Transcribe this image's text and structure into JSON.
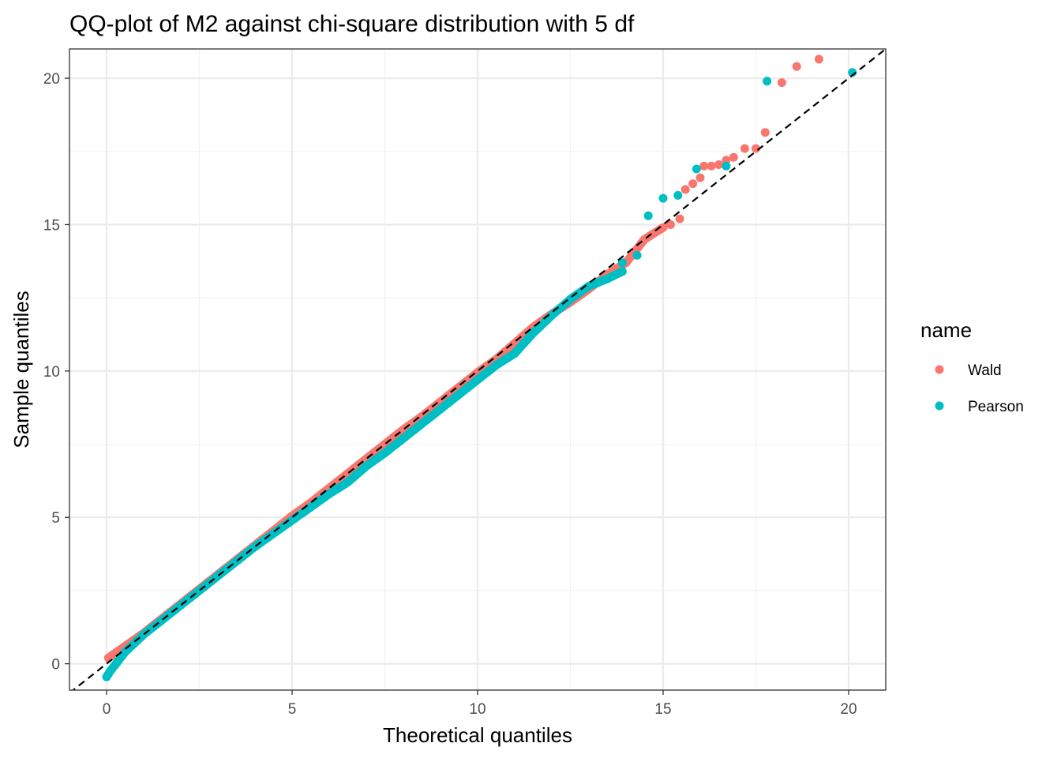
{
  "chart_data": {
    "type": "scatter",
    "title": "QQ-plot of M2 against chi-square distribution with 5 df",
    "xlabel": "Theoretical quantiles",
    "ylabel": "Sample quantiles",
    "xlim": [
      -1.0,
      21.0
    ],
    "ylim": [
      -0.9,
      21.0
    ],
    "x_ticks": [
      0,
      5,
      10,
      15,
      20
    ],
    "y_ticks": [
      0,
      5,
      10,
      15,
      20
    ],
    "x_tick_labels": [
      "0",
      "5",
      "10",
      "15",
      "20"
    ],
    "y_tick_labels": [
      "0",
      "5",
      "10",
      "15",
      "20"
    ],
    "grid": true,
    "reference_line": {
      "style": "dashed",
      "color": "#000000",
      "intercept": 0,
      "slope": 1
    },
    "legend": {
      "title": "name",
      "position": "right",
      "entries": [
        {
          "label": "Wald",
          "color": "#F8766D"
        },
        {
          "label": "Pearson",
          "color": "#00BFC4"
        }
      ]
    },
    "series": [
      {
        "name": "Wald",
        "color": "#F8766D",
        "dense_curve": [
          [
            0.05,
            0.2
          ],
          [
            0.5,
            0.6
          ],
          [
            1.0,
            1.05
          ],
          [
            1.5,
            1.55
          ],
          [
            2.0,
            2.05
          ],
          [
            2.5,
            2.55
          ],
          [
            3.0,
            3.05
          ],
          [
            3.5,
            3.55
          ],
          [
            4.0,
            4.05
          ],
          [
            4.5,
            4.55
          ],
          [
            5.0,
            5.05
          ],
          [
            5.5,
            5.5
          ],
          [
            6.0,
            6.0
          ],
          [
            6.5,
            6.5
          ],
          [
            7.0,
            7.0
          ],
          [
            7.5,
            7.5
          ],
          [
            8.0,
            8.0
          ],
          [
            8.5,
            8.45
          ],
          [
            9.0,
            8.95
          ],
          [
            9.5,
            9.45
          ],
          [
            10.0,
            9.95
          ],
          [
            10.5,
            10.4
          ],
          [
            11.0,
            10.95
          ],
          [
            11.5,
            11.5
          ],
          [
            12.0,
            11.95
          ],
          [
            12.5,
            12.35
          ],
          [
            13.0,
            12.8
          ],
          [
            13.5,
            13.3
          ],
          [
            14.0,
            13.7
          ],
          [
            14.5,
            14.5
          ],
          [
            15.0,
            14.9
          ]
        ],
        "points": [
          [
            15.2,
            15.0
          ],
          [
            15.45,
            15.2
          ],
          [
            15.6,
            16.2
          ],
          [
            15.8,
            16.4
          ],
          [
            16.0,
            16.6
          ],
          [
            16.1,
            17.0
          ],
          [
            16.3,
            17.0
          ],
          [
            16.5,
            17.05
          ],
          [
            16.7,
            17.2
          ],
          [
            16.9,
            17.3
          ],
          [
            17.2,
            17.6
          ],
          [
            17.5,
            17.6
          ],
          [
            17.75,
            18.15
          ],
          [
            18.2,
            19.85
          ],
          [
            18.6,
            20.4
          ],
          [
            19.2,
            20.65
          ]
        ]
      },
      {
        "name": "Pearson",
        "color": "#00BFC4",
        "dense_curve": [
          [
            0.0,
            -0.45
          ],
          [
            0.1,
            -0.25
          ],
          [
            0.5,
            0.4
          ],
          [
            1.0,
            1.0
          ],
          [
            1.5,
            1.5
          ],
          [
            2.0,
            2.0
          ],
          [
            2.5,
            2.5
          ],
          [
            3.0,
            3.0
          ],
          [
            3.5,
            3.5
          ],
          [
            4.0,
            4.0
          ],
          [
            4.5,
            4.45
          ],
          [
            5.0,
            4.9
          ],
          [
            5.5,
            5.35
          ],
          [
            6.0,
            5.8
          ],
          [
            6.5,
            6.2
          ],
          [
            7.0,
            6.75
          ],
          [
            7.5,
            7.2
          ],
          [
            8.0,
            7.7
          ],
          [
            8.5,
            8.2
          ],
          [
            9.0,
            8.7
          ],
          [
            9.5,
            9.2
          ],
          [
            10.0,
            9.7
          ],
          [
            10.5,
            10.2
          ],
          [
            11.0,
            10.6
          ],
          [
            11.5,
            11.3
          ],
          [
            12.0,
            11.9
          ],
          [
            12.5,
            12.45
          ],
          [
            13.0,
            12.9
          ],
          [
            13.5,
            13.15
          ],
          [
            13.9,
            13.4
          ]
        ],
        "points": [
          [
            13.9,
            13.7
          ],
          [
            14.3,
            13.95
          ],
          [
            14.6,
            15.3
          ],
          [
            15.0,
            15.9
          ],
          [
            15.4,
            16.0
          ],
          [
            15.9,
            16.9
          ],
          [
            16.7,
            17.0
          ],
          [
            17.8,
            19.9
          ],
          [
            20.1,
            20.2
          ]
        ]
      }
    ]
  }
}
